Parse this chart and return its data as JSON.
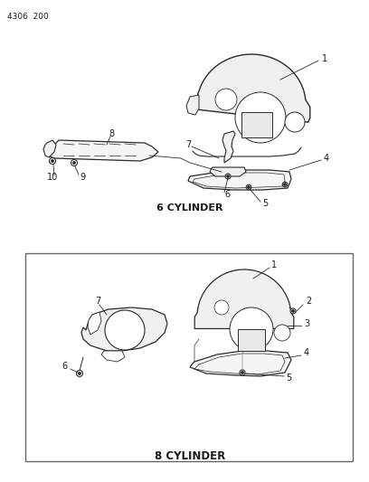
{
  "title": "4306  200",
  "background_color": "#ffffff",
  "fig_width": 4.08,
  "fig_height": 5.33,
  "dpi": 100,
  "top_label": "6 CYLINDER",
  "bottom_label": "8 CYLINDER",
  "text_color": "#1a1a1a",
  "line_color": "#2a2a2a",
  "thin_color": "#555555"
}
